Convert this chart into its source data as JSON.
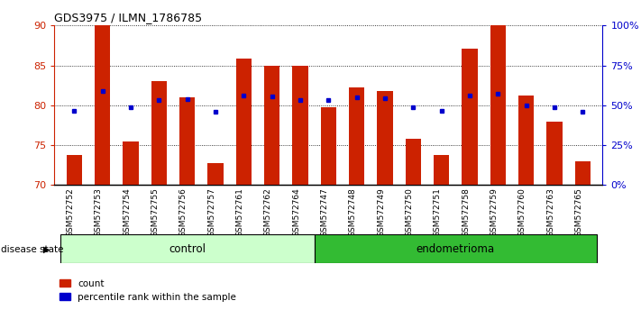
{
  "title": "GDS3975 / ILMN_1786785",
  "samples": [
    "GSM572752",
    "GSM572753",
    "GSM572754",
    "GSM572755",
    "GSM572756",
    "GSM572757",
    "GSM572761",
    "GSM572762",
    "GSM572764",
    "GSM572747",
    "GSM572748",
    "GSM572749",
    "GSM572750",
    "GSM572751",
    "GSM572758",
    "GSM572759",
    "GSM572760",
    "GSM572763",
    "GSM572765"
  ],
  "bar_values": [
    73.8,
    90.0,
    75.5,
    83.0,
    81.0,
    72.7,
    85.8,
    84.9,
    85.0,
    79.8,
    82.2,
    81.8,
    75.8,
    73.8,
    87.1,
    90.0,
    81.2,
    78.0,
    73.0
  ],
  "dot_values": [
    79.3,
    81.8,
    79.7,
    80.7,
    80.8,
    79.2,
    81.2,
    81.1,
    80.7,
    80.7,
    81.0,
    80.9,
    79.7,
    79.3,
    81.2,
    81.5,
    80.0,
    79.7,
    79.2
  ],
  "control_count": 9,
  "endometrioma_count": 10,
  "ylim_left": [
    70,
    90
  ],
  "ylim_right": [
    0,
    100
  ],
  "yticks_left": [
    70,
    75,
    80,
    85,
    90
  ],
  "yticks_right": [
    0,
    25,
    50,
    75,
    100
  ],
  "ytick_labels_right": [
    "0%",
    "25%",
    "50%",
    "75%",
    "100%"
  ],
  "bar_color": "#cc2200",
  "dot_color": "#0000cc",
  "control_bg": "#ccffcc",
  "endometrioma_bg": "#33bb33",
  "bar_width": 0.55
}
